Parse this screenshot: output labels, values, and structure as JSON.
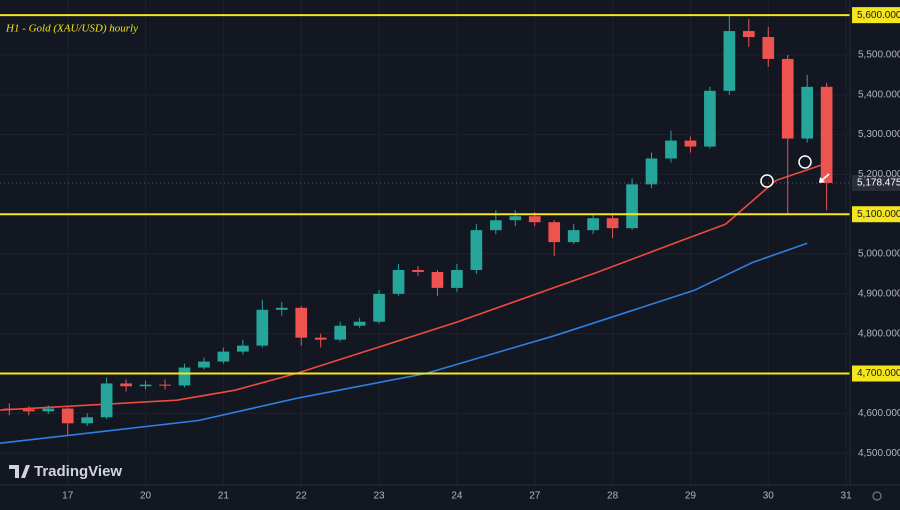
{
  "chart_data": {
    "type": "candlestick",
    "title": "H1 - Gold (XAU/USD) hourly",
    "brand": "TradingView",
    "xlim": [
      -0.87,
      10.05
    ],
    "ylim": [
      4420,
      5638
    ],
    "xticks": [
      {
        "value": 0,
        "label": "17"
      },
      {
        "value": 1,
        "label": "20"
      },
      {
        "value": 2,
        "label": "21"
      },
      {
        "value": 3,
        "label": "22"
      },
      {
        "value": 4,
        "label": "23"
      },
      {
        "value": 5,
        "label": "24"
      },
      {
        "value": 6,
        "label": "27"
      },
      {
        "value": 7,
        "label": "28"
      },
      {
        "value": 8,
        "label": "29"
      },
      {
        "value": 9,
        "label": "30"
      },
      {
        "value": 10,
        "label": "31"
      }
    ],
    "yticks": [
      {
        "value": 4500,
        "label": "4,500.000"
      },
      {
        "value": 4600,
        "label": "4,600.000"
      },
      {
        "value": 4800,
        "label": "4,800.000"
      },
      {
        "value": 4900,
        "label": "4,900.000"
      },
      {
        "value": 5000,
        "label": "5,000.000"
      },
      {
        "value": 5200,
        "label": "5,200.000"
      },
      {
        "value": 5300,
        "label": "5,300.000"
      },
      {
        "value": 5400,
        "label": "5,400.000"
      },
      {
        "value": 5500,
        "label": "5,500.000"
      }
    ],
    "levels": [
      {
        "value": 5600,
        "label": "5,600.000"
      },
      {
        "value": 5100,
        "label": "5,100.000"
      },
      {
        "value": 4700,
        "label": "4,700.000"
      }
    ],
    "level_color": "#f5e51b",
    "last_price": {
      "value": 5178.475,
      "label": "5,178.475"
    },
    "up_color": "#26a69a",
    "down_color": "#ef5350",
    "grid": true,
    "candles": {
      "x": [
        -0.75,
        -0.5,
        -0.25,
        0,
        0.25,
        0.5,
        0.75,
        1,
        1.25,
        1.5,
        1.75,
        2,
        2.25,
        2.5,
        2.75,
        3,
        3.25,
        3.5,
        3.75,
        4,
        4.25,
        4.5,
        4.75,
        5,
        5.25,
        5.5,
        5.75,
        6,
        6.25,
        6.5,
        6.75,
        7,
        7.25,
        7.5,
        7.75,
        8,
        8.25,
        8.5,
        8.75,
        9,
        9.25,
        9.5,
        9.75
      ],
      "open": [
        4612,
        4610,
        4605,
        4612,
        4575,
        4590,
        4675,
        4668,
        4672,
        4670,
        4715,
        4730,
        4755,
        4770,
        4860,
        4865,
        4790,
        4785,
        4820,
        4830,
        4900,
        4960,
        4955,
        4915,
        4960,
        5060,
        5085,
        5095,
        5080,
        5030,
        5060,
        5090,
        5065,
        5175,
        5240,
        5285,
        5270,
        5410,
        5560,
        5545,
        5490,
        5290,
        5420
      ],
      "high": [
        4625,
        4618,
        4620,
        4615,
        4600,
        4690,
        4685,
        4682,
        4685,
        4725,
        4740,
        4765,
        4785,
        4885,
        4880,
        4870,
        4800,
        4830,
        4840,
        4910,
        4975,
        4970,
        4960,
        4975,
        5075,
        5110,
        5110,
        5105,
        5085,
        5075,
        5100,
        5100,
        5190,
        5255,
        5310,
        5295,
        5420,
        5600,
        5590,
        5570,
        5500,
        5450,
        5430
      ],
      "low": [
        4595,
        4595,
        4598,
        4545,
        4568,
        4585,
        4655,
        4660,
        4660,
        4665,
        4710,
        4725,
        4748,
        4765,
        4845,
        4770,
        4765,
        4780,
        4815,
        4825,
        4895,
        4945,
        4895,
        4905,
        4950,
        5050,
        5070,
        5070,
        4995,
        5025,
        5050,
        5040,
        5060,
        5165,
        5230,
        5255,
        5265,
        5400,
        5520,
        5470,
        5100,
        5280,
        5110
      ],
      "close": [
        4610,
        4605,
        4612,
        4575,
        4590,
        4675,
        4668,
        4672,
        4670,
        4715,
        4730,
        4755,
        4770,
        4860,
        4865,
        4790,
        4785,
        4820,
        4830,
        4900,
        4960,
        4955,
        4915,
        4960,
        5060,
        5085,
        5095,
        5080,
        5030,
        5060,
        5090,
        5065,
        5175,
        5240,
        5285,
        5270,
        5410,
        5560,
        5545,
        5490,
        5290,
        5420,
        5178.475
      ]
    },
    "series": [
      {
        "color": "#f04a3e",
        "x": [
          -0.87,
          1.4,
          2.15,
          2.95,
          5.0,
          6.8,
          7.9,
          8.45,
          9.1,
          9.75
        ],
        "values": [
          4608,
          4633,
          4658,
          4701,
          4829,
          4954,
          5035,
          5075,
          5185,
          5228
        ]
      },
      {
        "color": "#2f7fe0",
        "x": [
          -0.87,
          1.68,
          2.95,
          4.6,
          6.27,
          8.05,
          8.8,
          9.5
        ],
        "values": [
          4525,
          4582,
          4638,
          4700,
          4796,
          4909,
          4979,
          5027
        ]
      }
    ]
  }
}
